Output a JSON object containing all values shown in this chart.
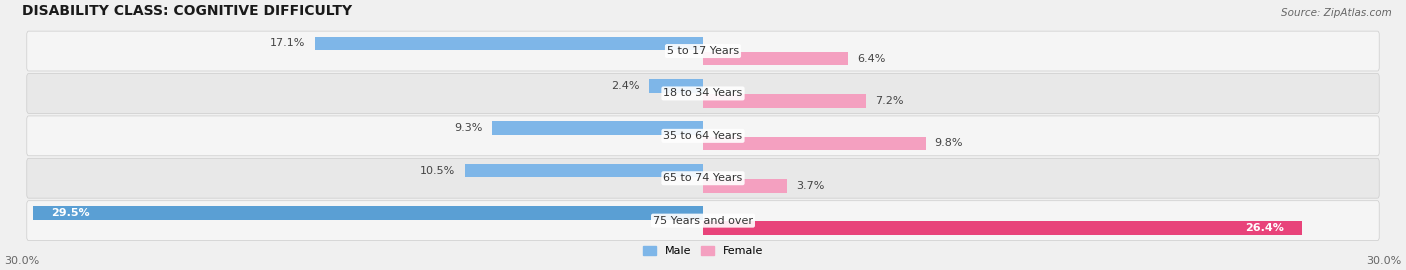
{
  "title": "DISABILITY CLASS: COGNITIVE DIFFICULTY",
  "source": "Source: ZipAtlas.com",
  "categories": [
    "5 to 17 Years",
    "18 to 34 Years",
    "35 to 64 Years",
    "65 to 74 Years",
    "75 Years and over"
  ],
  "male_values": [
    17.1,
    2.4,
    9.3,
    10.5,
    29.5
  ],
  "female_values": [
    6.4,
    7.2,
    9.8,
    3.7,
    26.4
  ],
  "male_color_normal": "#7EB6E8",
  "female_color_normal": "#F4A0C0",
  "male_color_last": "#5A9FD4",
  "female_color_last": "#E8437A",
  "axis_max": 30.0,
  "background_color": "#f0f0f0",
  "row_bg_color": "#e8e8e8",
  "row_bg_color2": "#f5f5f5",
  "title_fontsize": 10,
  "label_fontsize": 8,
  "tick_fontsize": 8,
  "source_fontsize": 7.5
}
